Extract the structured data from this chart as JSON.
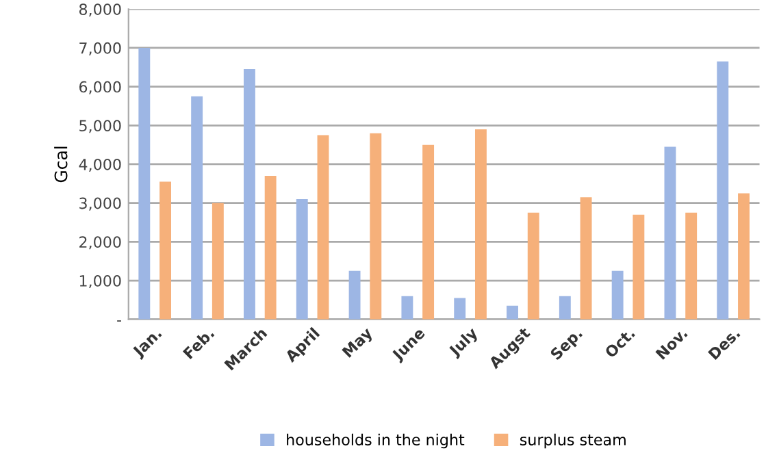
{
  "chart_data": {
    "type": "bar",
    "ylabel": "Gcal",
    "categories": [
      "Jan.",
      "Feb.",
      "March",
      "April",
      "May",
      "June",
      "July",
      "Augst",
      "Sep.",
      "Oct.",
      "Nov.",
      "Des."
    ],
    "series": [
      {
        "name": "households in the night",
        "color": "#9db6e4",
        "values": [
          7000,
          5750,
          6450,
          3100,
          1250,
          600,
          550,
          350,
          600,
          1250,
          4450,
          6650
        ]
      },
      {
        "name": "surplus steam",
        "color": "#f6b07a",
        "values": [
          3550,
          3000,
          3700,
          4750,
          4800,
          4500,
          4900,
          2750,
          3150,
          2700,
          2750,
          3250
        ]
      }
    ],
    "ylim": [
      0,
      8000
    ],
    "yticks": [
      {
        "value": 0,
        "label": "-"
      },
      {
        "value": 1000,
        "label": "1,000"
      },
      {
        "value": 2000,
        "label": "2,000"
      },
      {
        "value": 3000,
        "label": "3,000"
      },
      {
        "value": 4000,
        "label": "4,000"
      },
      {
        "value": 5000,
        "label": "5,000"
      },
      {
        "value": 6000,
        "label": "6,000"
      },
      {
        "value": 7000,
        "label": "7,000"
      },
      {
        "value": 8000,
        "label": "8,000"
      }
    ],
    "grid": "y",
    "legend": "bottom"
  }
}
